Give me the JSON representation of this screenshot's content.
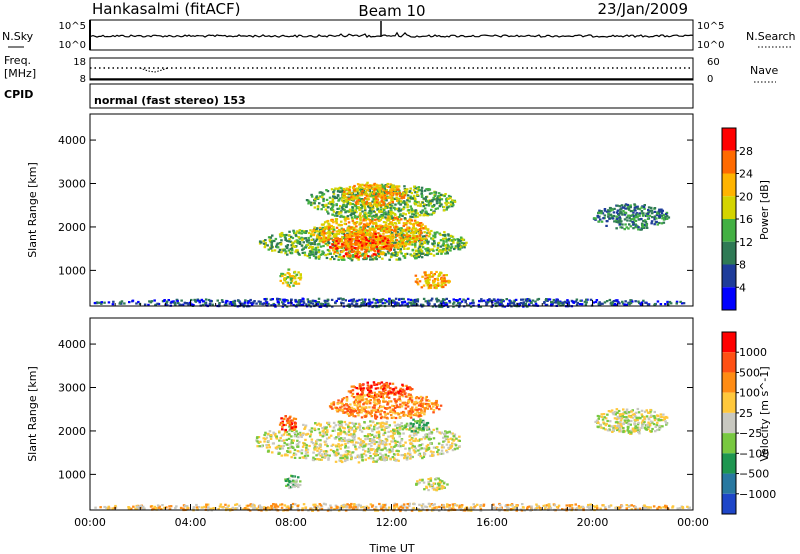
{
  "header": {
    "station": "Hankasalmi (fitACF)",
    "beam": "Beam 10",
    "date": "23/Jan/2009"
  },
  "status_panels": {
    "nsky_label": "N.Sky",
    "nsky_ticks": [
      "10^5",
      "10^0"
    ],
    "nsearch_label": "N.Search",
    "nsearch_ticks": [
      "10^5",
      "10^0"
    ],
    "freq_label": "Freq.",
    "freq_unit": "[MHz]",
    "freq_ticks": [
      "18",
      "8"
    ],
    "nave_label": "Nave",
    "nave_ticks": [
      "60",
      "0"
    ],
    "cpid_label": "CPID",
    "cpid_text": "normal (fast stereo) 153"
  },
  "chart_data": [
    {
      "type": "heatmap",
      "panel": "power",
      "ylabel": "Slant Range [km]",
      "yticks": [
        1000,
        2000,
        3000,
        4000
      ],
      "ylim": [
        180,
        4600
      ],
      "xlim": [
        0,
        24
      ],
      "colorbar": {
        "label": "Power [dB]",
        "ticks": [
          "4",
          "8",
          "12",
          "16",
          "20",
          "24",
          "28"
        ],
        "colors": [
          "#0000ff",
          "#1e3c9a",
          "#2f7a55",
          "#43b043",
          "#d4d400",
          "#ffb400",
          "#ff6a00",
          "#ff0000"
        ]
      },
      "regions": [
        {
          "t0": 6.7,
          "t1": 15.0,
          "r0": 1250,
          "r1": 2050,
          "level": 3
        },
        {
          "t0": 8.8,
          "t1": 13.5,
          "r0": 1500,
          "r1": 2300,
          "level": 5
        },
        {
          "t0": 9.5,
          "t1": 12.0,
          "r0": 1300,
          "r1": 1900,
          "level": 6
        },
        {
          "t0": 8.5,
          "t1": 14.5,
          "r0": 2200,
          "r1": 3000,
          "level": 3
        },
        {
          "t0": 10.0,
          "t1": 12.5,
          "r0": 2500,
          "r1": 3050,
          "level": 5
        },
        {
          "t0": 7.5,
          "t1": 8.4,
          "r0": 650,
          "r1": 1050,
          "level": 4
        },
        {
          "t0": 12.8,
          "t1": 14.3,
          "r0": 600,
          "r1": 1000,
          "level": 5
        },
        {
          "t0": 20.0,
          "t1": 23.0,
          "r0": 1950,
          "r1": 2550,
          "level": 2
        },
        {
          "t0": 0.0,
          "t1": 24.0,
          "r0": 180,
          "r1": 380,
          "level": 1
        }
      ]
    },
    {
      "type": "heatmap",
      "panel": "velocity",
      "ylabel": "Slant Range [km]",
      "yticks": [
        1000,
        2000,
        3000,
        4000
      ],
      "ylim": [
        180,
        4600
      ],
      "xlim": [
        0,
        24
      ],
      "xticks": [
        "00:00",
        "04:00",
        "08:00",
        "12:00",
        "16:00",
        "20:00",
        "00:00"
      ],
      "xlabel": "Time UT",
      "colorbar": {
        "label": "Velocity [m s^-1]",
        "ticks": [
          "1000",
          "500",
          "100",
          "25",
          "−25",
          "−100",
          "−500",
          "−1000"
        ],
        "colors": [
          "#1e46c8",
          "#2878a0",
          "#1e9650",
          "#78c840",
          "#c8c8c0",
          "#ffc83c",
          "#ff8c14",
          "#ff5014",
          "#ff0000"
        ]
      },
      "regions": [
        {
          "t0": 6.5,
          "t1": 14.8,
          "r0": 1300,
          "r1": 2250,
          "level": 4
        },
        {
          "t0": 9.5,
          "t1": 14.0,
          "r0": 2300,
          "r1": 2900,
          "level": 6
        },
        {
          "t0": 10.2,
          "t1": 12.8,
          "r0": 2800,
          "r1": 3150,
          "level": 7
        },
        {
          "t0": 7.5,
          "t1": 8.2,
          "r0": 2000,
          "r1": 2400,
          "level": 7
        },
        {
          "t0": 12.5,
          "t1": 13.5,
          "r0": 2000,
          "r1": 2300,
          "level": 3
        },
        {
          "t0": 7.6,
          "t1": 8.4,
          "r0": 700,
          "r1": 1000,
          "level": 3
        },
        {
          "t0": 12.9,
          "t1": 14.2,
          "r0": 650,
          "r1": 950,
          "level": 4
        },
        {
          "t0": 20.0,
          "t1": 23.0,
          "r0": 1950,
          "r1": 2550,
          "level": 4
        },
        {
          "t0": 0.0,
          "t1": 24.0,
          "r0": 180,
          "r1": 350,
          "level": 5
        }
      ]
    }
  ]
}
